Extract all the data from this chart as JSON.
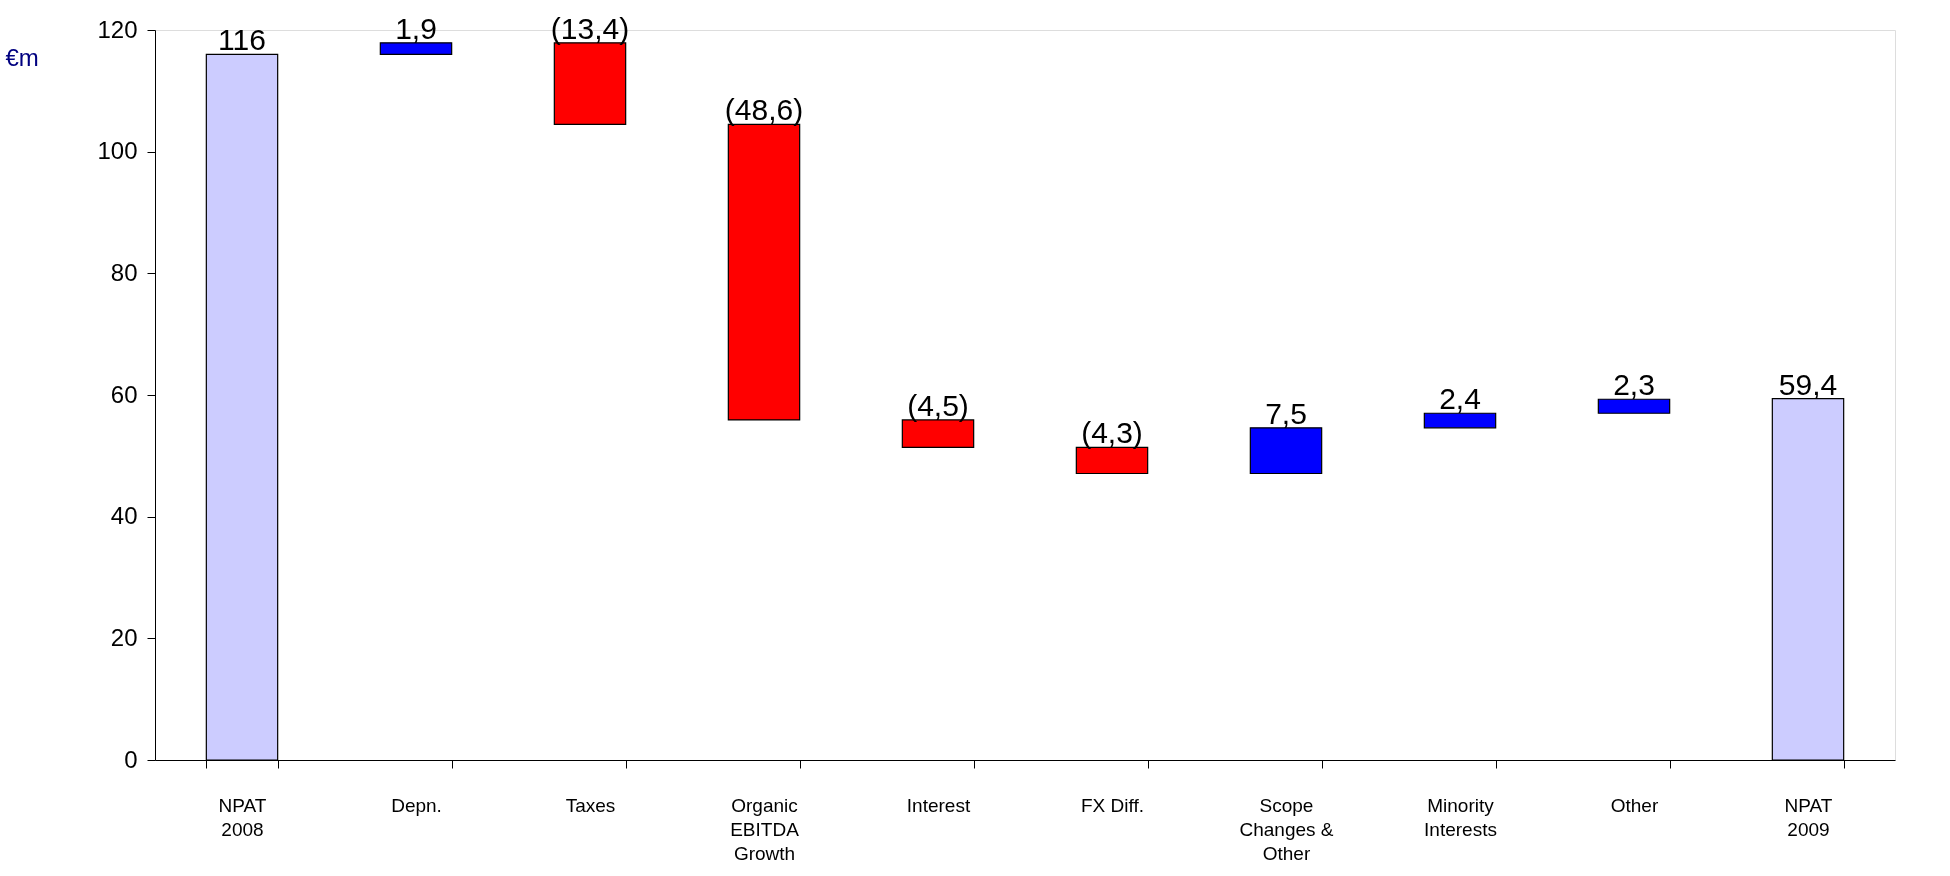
{
  "chart_data": {
    "type": "bar",
    "ylabel": "€m",
    "categories": [
      "NPAT\n2008",
      "Depn.",
      "Taxes",
      "Organic\nEBITDA\nGrowth",
      "Interest",
      "FX Diff.",
      "Scope\nChanges &\nOther",
      "Minority\nInterests",
      "Other",
      "NPAT\n2009"
    ],
    "values": [
      116,
      1.9,
      -13.4,
      -48.6,
      -4.5,
      -4.3,
      7.5,
      2.4,
      2.3,
      59.4
    ],
    "base": [
      0,
      116,
      117.9,
      104.5,
      55.9,
      51.4,
      47.1,
      54.6,
      57.0,
      0
    ],
    "colors": [
      "#ccccff",
      "#0000ff",
      "#ff0000",
      "#ff0000",
      "#ff0000",
      "#ff0000",
      "#0000ff",
      "#0000ff",
      "#0000ff",
      "#ccccff"
    ],
    "value_labels": [
      "116",
      "1,9",
      "(13,4)",
      "(48,6)",
      "(4,5)",
      "(4,3)",
      "7,5",
      "2,4",
      "2,3",
      "59,4"
    ],
    "ylim": [
      0,
      120
    ],
    "yticks": [
      0,
      20,
      40,
      60,
      80,
      100,
      120
    ],
    "grid": false
  }
}
